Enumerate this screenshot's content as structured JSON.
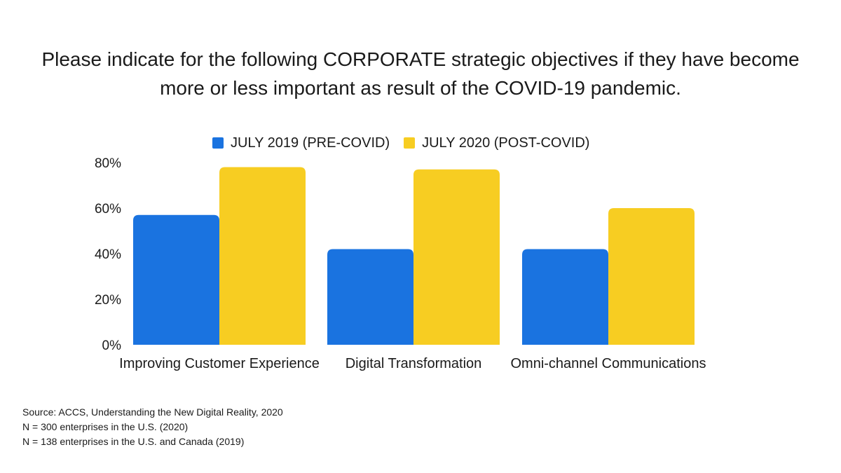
{
  "title_line1": "Please indicate for the following CORPORATE strategic objectives if they have become",
  "title_line2": "more or less important as result of the COVID-19 pandemic.",
  "source_lines": [
    "Source: ACCS, Understanding the New Digital Reality, 2020",
    "N = 300 enterprises in the U.S. (2020)",
    "N = 138 enterprises in the U.S. and Canada (2019)"
  ],
  "colors": {
    "series_2019": "#1a73e0",
    "series_2020": "#f7cd22"
  },
  "chart_data": {
    "type": "bar",
    "categories": [
      "Improving Customer Experience",
      "Digital Transformation",
      "Omni-channel Communications"
    ],
    "series": [
      {
        "name": "JULY 2019 (PRE-COVID)",
        "values": [
          57,
          42,
          42
        ]
      },
      {
        "name": "JULY 2020 (POST-COVID)",
        "values": [
          78,
          77,
          60
        ]
      }
    ],
    "y_ticks": [
      "0%",
      "20%",
      "40%",
      "60%",
      "80%"
    ],
    "ylim": [
      0,
      80
    ],
    "grid": false,
    "legend_position": "top"
  }
}
